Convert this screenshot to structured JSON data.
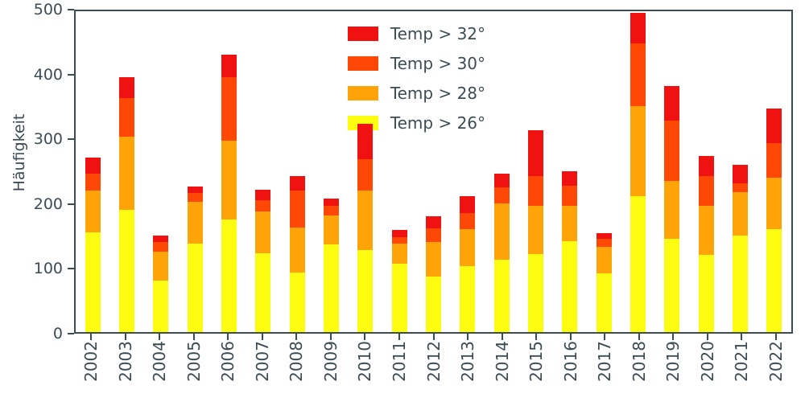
{
  "chart_data": {
    "type": "bar",
    "stacked": true,
    "title": "",
    "xlabel": "",
    "ylabel": "Häufigkeit",
    "ylim": [
      0,
      500
    ],
    "yticks": [
      0,
      100,
      200,
      300,
      400,
      500
    ],
    "grid": false,
    "legend_position": "upper center inside",
    "categories": [
      "2002",
      "2003",
      "2004",
      "2005",
      "2006",
      "2007",
      "2008",
      "2009",
      "2010",
      "2011",
      "2012",
      "2013",
      "2014",
      "2015",
      "2016",
      "2017",
      "2018",
      "2019",
      "2020",
      "2021",
      "2022"
    ],
    "series": [
      {
        "name": "Temp > 32°",
        "color": "#f01111",
        "values": [
          25,
          32,
          10,
          10,
          35,
          17,
          23,
          11,
          55,
          11,
          18,
          27,
          22,
          71,
          23,
          9,
          47,
          53,
          32,
          29,
          54
        ]
      },
      {
        "name": "Temp > 30°",
        "color": "#ff4805",
        "values": [
          27,
          60,
          15,
          14,
          99,
          17,
          57,
          15,
          50,
          10,
          22,
          25,
          25,
          46,
          31,
          12,
          98,
          95,
          46,
          14,
          55
        ]
      },
      {
        "name": "Temp > 28°",
        "color": "#ffa408",
        "values": [
          65,
          115,
          45,
          65,
          123,
          65,
          70,
          45,
          92,
          31,
          53,
          57,
          87,
          75,
          55,
          42,
          140,
          90,
          77,
          68,
          80
        ]
      },
      {
        "name": "Temp > 26°",
        "color": "#fcfc11",
        "values": [
          155,
          190,
          80,
          138,
          175,
          123,
          93,
          137,
          128,
          107,
          87,
          103,
          113,
          122,
          142,
          91,
          212,
          145,
          120,
          150,
          160
        ]
      }
    ]
  },
  "colors": {
    "axis_text": "#3c4c55",
    "spine": "#3c4c55",
    "background": "#ffffff"
  }
}
